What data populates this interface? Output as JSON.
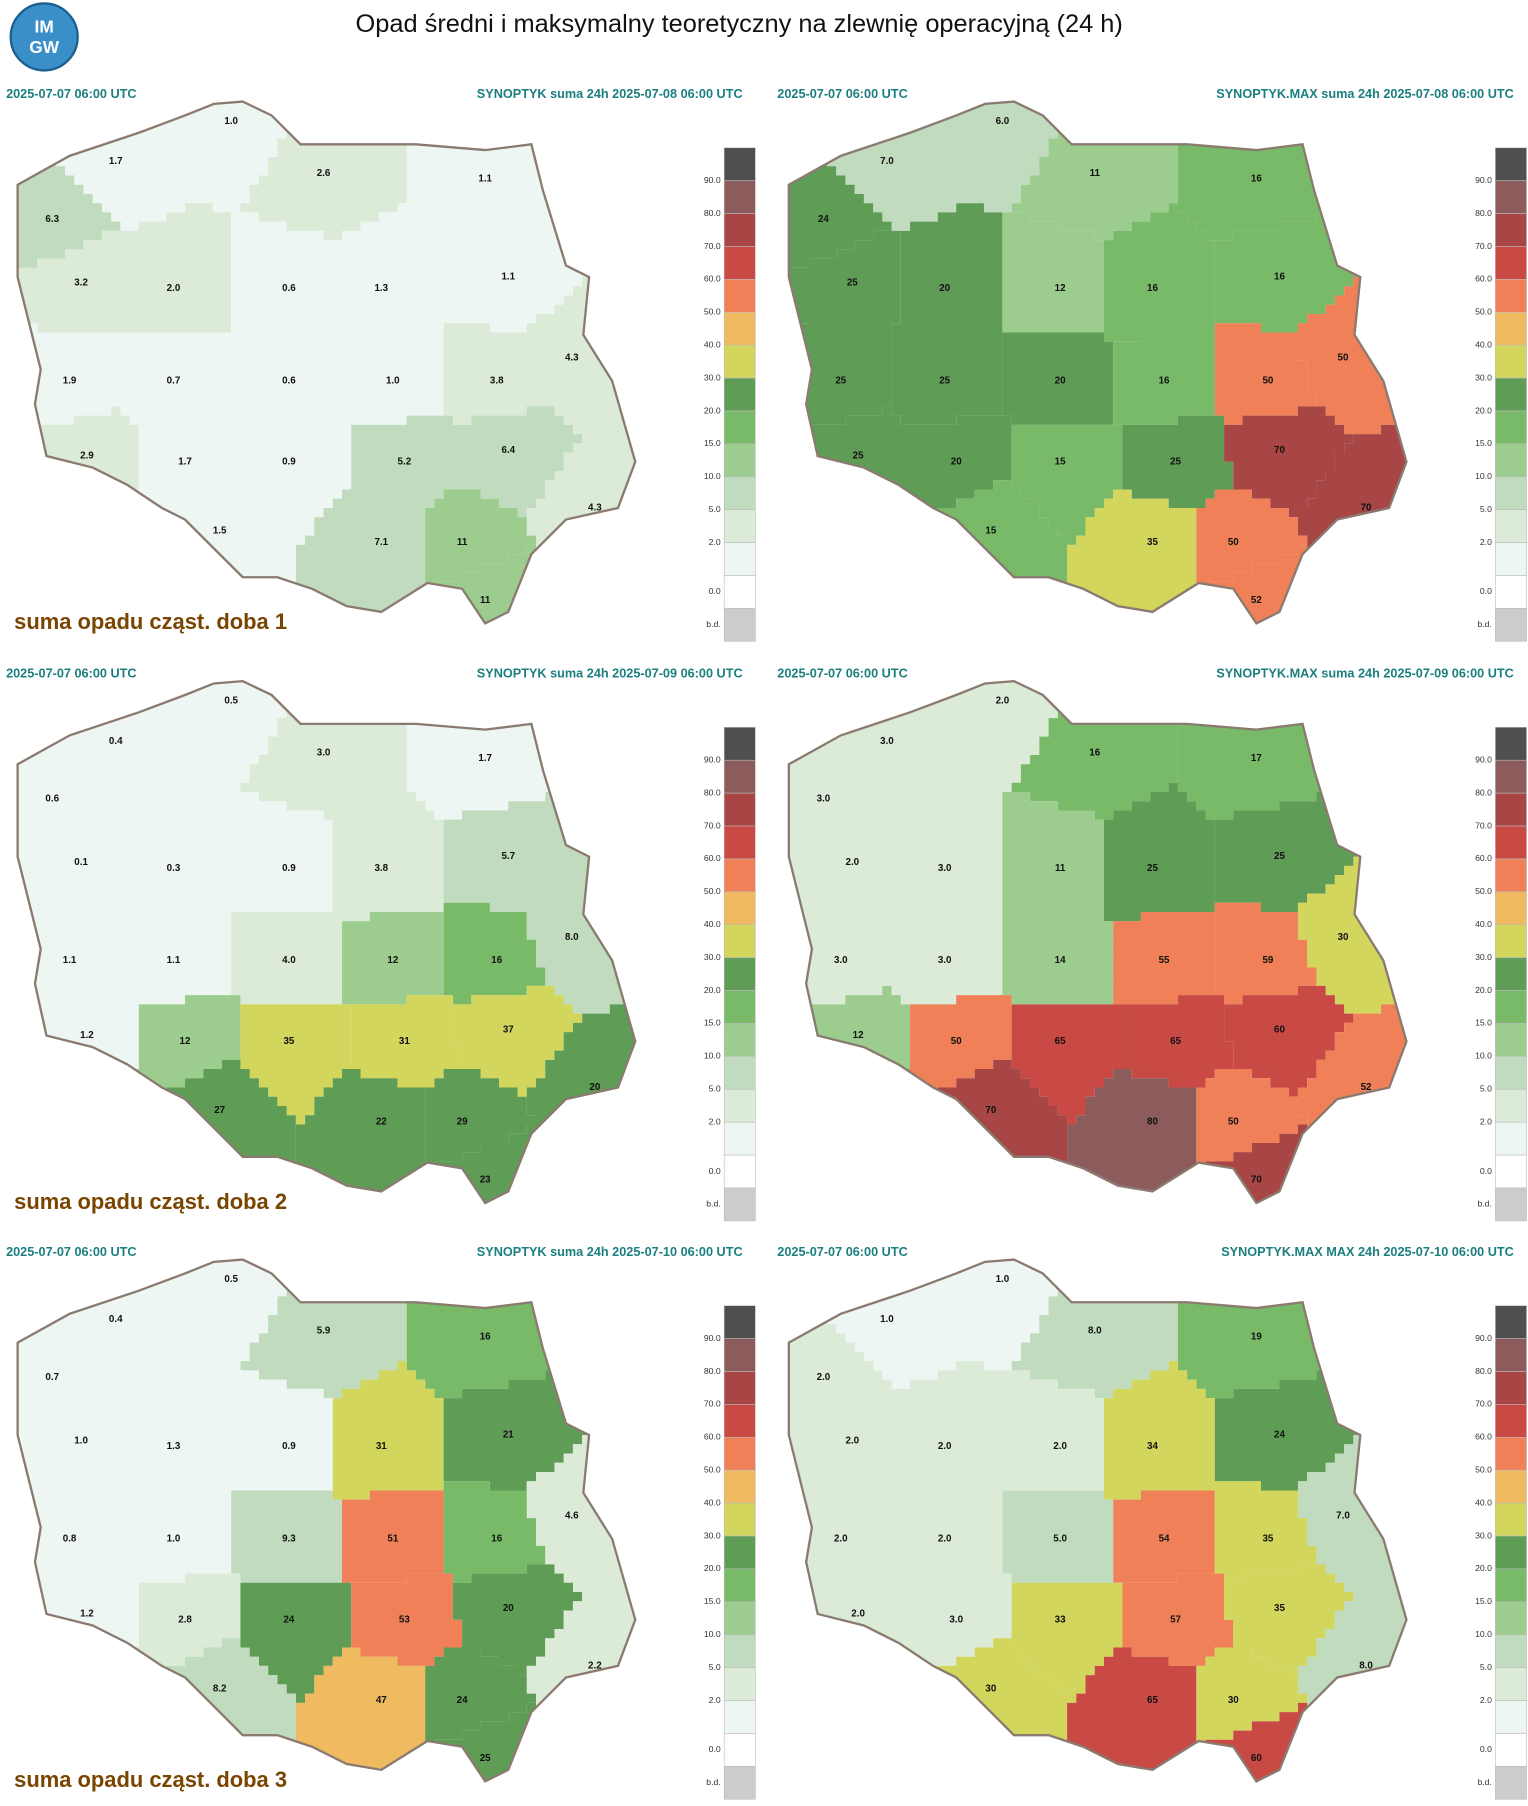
{
  "header": {
    "logo": [
      "IM",
      "GW"
    ],
    "title": "Opad średni i maksymalny teoretyczny na zlewnię operacyjną (24 h)"
  },
  "legend": {
    "levels": [
      "90.0",
      "80.0",
      "70.0",
      "60.0",
      "50.0",
      "40.0",
      "30.0",
      "20.0",
      "15.0",
      "10.0",
      "5.0",
      "2.0",
      "0.0",
      "b.d."
    ],
    "colors": [
      "#4f4f4f",
      "#8c5c5c",
      "#a84646",
      "#c94a45",
      "#f08058",
      "#f0ba60",
      "#d2d65c",
      "#5f9c55",
      "#78ba68",
      "#9ccd8e",
      "#c0dbbd",
      "#dcebd7",
      "#eef6f3",
      "#ffffff",
      "#cccccc"
    ]
  },
  "panels": [
    {
      "start": "2025-07-07 06:00 UTC",
      "product": "SYNOPTYK suma 24h 2025-07-08 06:00 UTC",
      "caption": "suma opadu cząst. doba 1",
      "values": [
        "1.0",
        "1.7",
        "6.3",
        "2.6",
        "1.1",
        "3.2",
        "2.0",
        "0.6",
        "1.3",
        "1.1",
        "4.3",
        "1.9",
        "0.7",
        "0.6",
        "1.0",
        "3.8",
        "2.9",
        "1.7",
        "0.9",
        "5.2",
        "6.4",
        "4.3",
        "7.1",
        "11",
        "1.5",
        "11"
      ]
    },
    {
      "start": "2025-07-07 06:00 UTC",
      "product": "SYNOPTYK.MAX suma 24h 2025-07-08 06:00 UTC",
      "values": [
        "6.0",
        "7.0",
        "24",
        "11",
        "16",
        "25",
        "20",
        "12",
        "16",
        "16",
        "50",
        "25",
        "25",
        "20",
        "16",
        "50",
        "25",
        "20",
        "15",
        "25",
        "70",
        "70",
        "35",
        "50",
        "15",
        "52"
      ]
    },
    {
      "start": "2025-07-07 06:00 UTC",
      "product": "SYNOPTYK suma 24h 2025-07-09 06:00 UTC",
      "caption": "suma opadu cząst. doba 2",
      "values": [
        "0.5",
        "0.4",
        "0.6",
        "3.0",
        "1.7",
        "0.1",
        "0.3",
        "0.9",
        "3.8",
        "5.7",
        "8.0",
        "1.1",
        "1.1",
        "4.0",
        "12",
        "16",
        "1.2",
        "12",
        "35",
        "31",
        "37",
        "20",
        "22",
        "29",
        "27",
        "23"
      ]
    },
    {
      "start": "2025-07-07 06:00 UTC",
      "product": "SYNOPTYK.MAX suma 24h 2025-07-09 06:00 UTC",
      "values": [
        "2.0",
        "3.0",
        "3.0",
        "16",
        "17",
        "2.0",
        "3.0",
        "11",
        "25",
        "25",
        "30",
        "3.0",
        "3.0",
        "14",
        "55",
        "59",
        "12",
        "50",
        "65",
        "65",
        "60",
        "52",
        "80",
        "50",
        "70",
        "70"
      ]
    },
    {
      "start": "2025-07-07 06:00 UTC",
      "product": "SYNOPTYK suma 24h 2025-07-10 06:00 UTC",
      "caption": "suma opadu cząst. doba 3",
      "values": [
        "0.5",
        "0.4",
        "0.7",
        "5.9",
        "16",
        "1.0",
        "1.3",
        "0.9",
        "31",
        "21",
        "4.6",
        "0.8",
        "1.0",
        "9.3",
        "51",
        "16",
        "1.2",
        "2.8",
        "24",
        "53",
        "20",
        "2.2",
        "47",
        "24",
        "8.2",
        "25"
      ]
    },
    {
      "start": "2025-07-07 06:00 UTC",
      "product": "SYNOPTYK.MAX MAX 24h 2025-07-10 06:00 UTC",
      "values": [
        "1.0",
        "1.0",
        "2.0",
        "8.0",
        "19",
        "2.0",
        "2.0",
        "2.0",
        "34",
        "24",
        "7.0",
        "2.0",
        "2.0",
        "5.0",
        "54",
        "35",
        "2.0",
        "3.0",
        "33",
        "57",
        "35",
        "8.0",
        "65",
        "30",
        "30",
        "60"
      ]
    }
  ]
}
